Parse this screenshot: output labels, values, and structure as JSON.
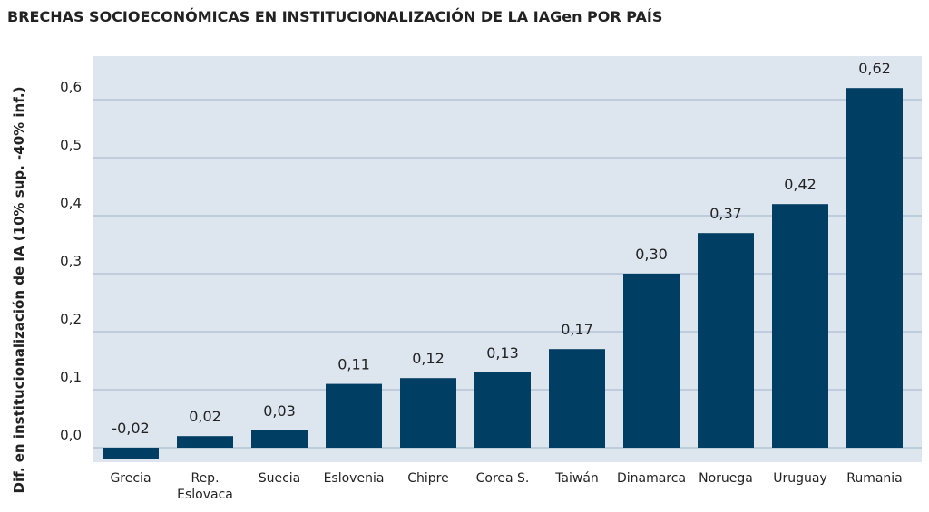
{
  "chart_data": {
    "type": "bar",
    "title": "BRECHAS SOCIOECONÓMICAS EN INSTITUCIONALIZACIÓN DE LA IAGen POR PAÍS",
    "y_label": "Dif. en institucionalización de IA (10% sup. -40% inf.)",
    "categories": [
      "Grecia",
      "Rep. Eslovaca",
      "Suecia",
      "Eslovenia",
      "Chipre",
      "Corea S.",
      "Taiwán",
      "Dinamarca",
      "Noruega",
      "Uruguay",
      "Rumania"
    ],
    "values": [
      -0.02,
      0.02,
      0.03,
      0.11,
      0.12,
      0.13,
      0.17,
      0.3,
      0.37,
      0.42,
      0.62
    ],
    "value_labels": [
      "-0,02",
      "0,02",
      "0,03",
      "0,11",
      "0,12",
      "0,13",
      "0,17",
      "0,30",
      "0,37",
      "0,42",
      "0,62"
    ],
    "color": "#003f63",
    "ylim": [
      -0.025,
      0.675
    ],
    "yticks": [
      {
        "value": 0,
        "label": "0,0"
      },
      {
        "value": 0.1,
        "label": "0,1"
      },
      {
        "value": 0.2,
        "label": "0,2"
      },
      {
        "value": 0.3,
        "label": "0,3"
      },
      {
        "value": 0.4,
        "label": "0,4"
      },
      {
        "value": 0.5,
        "label": "0,5"
      },
      {
        "value": 0.6,
        "label": "0,6"
      }
    ],
    "grid": true
  }
}
